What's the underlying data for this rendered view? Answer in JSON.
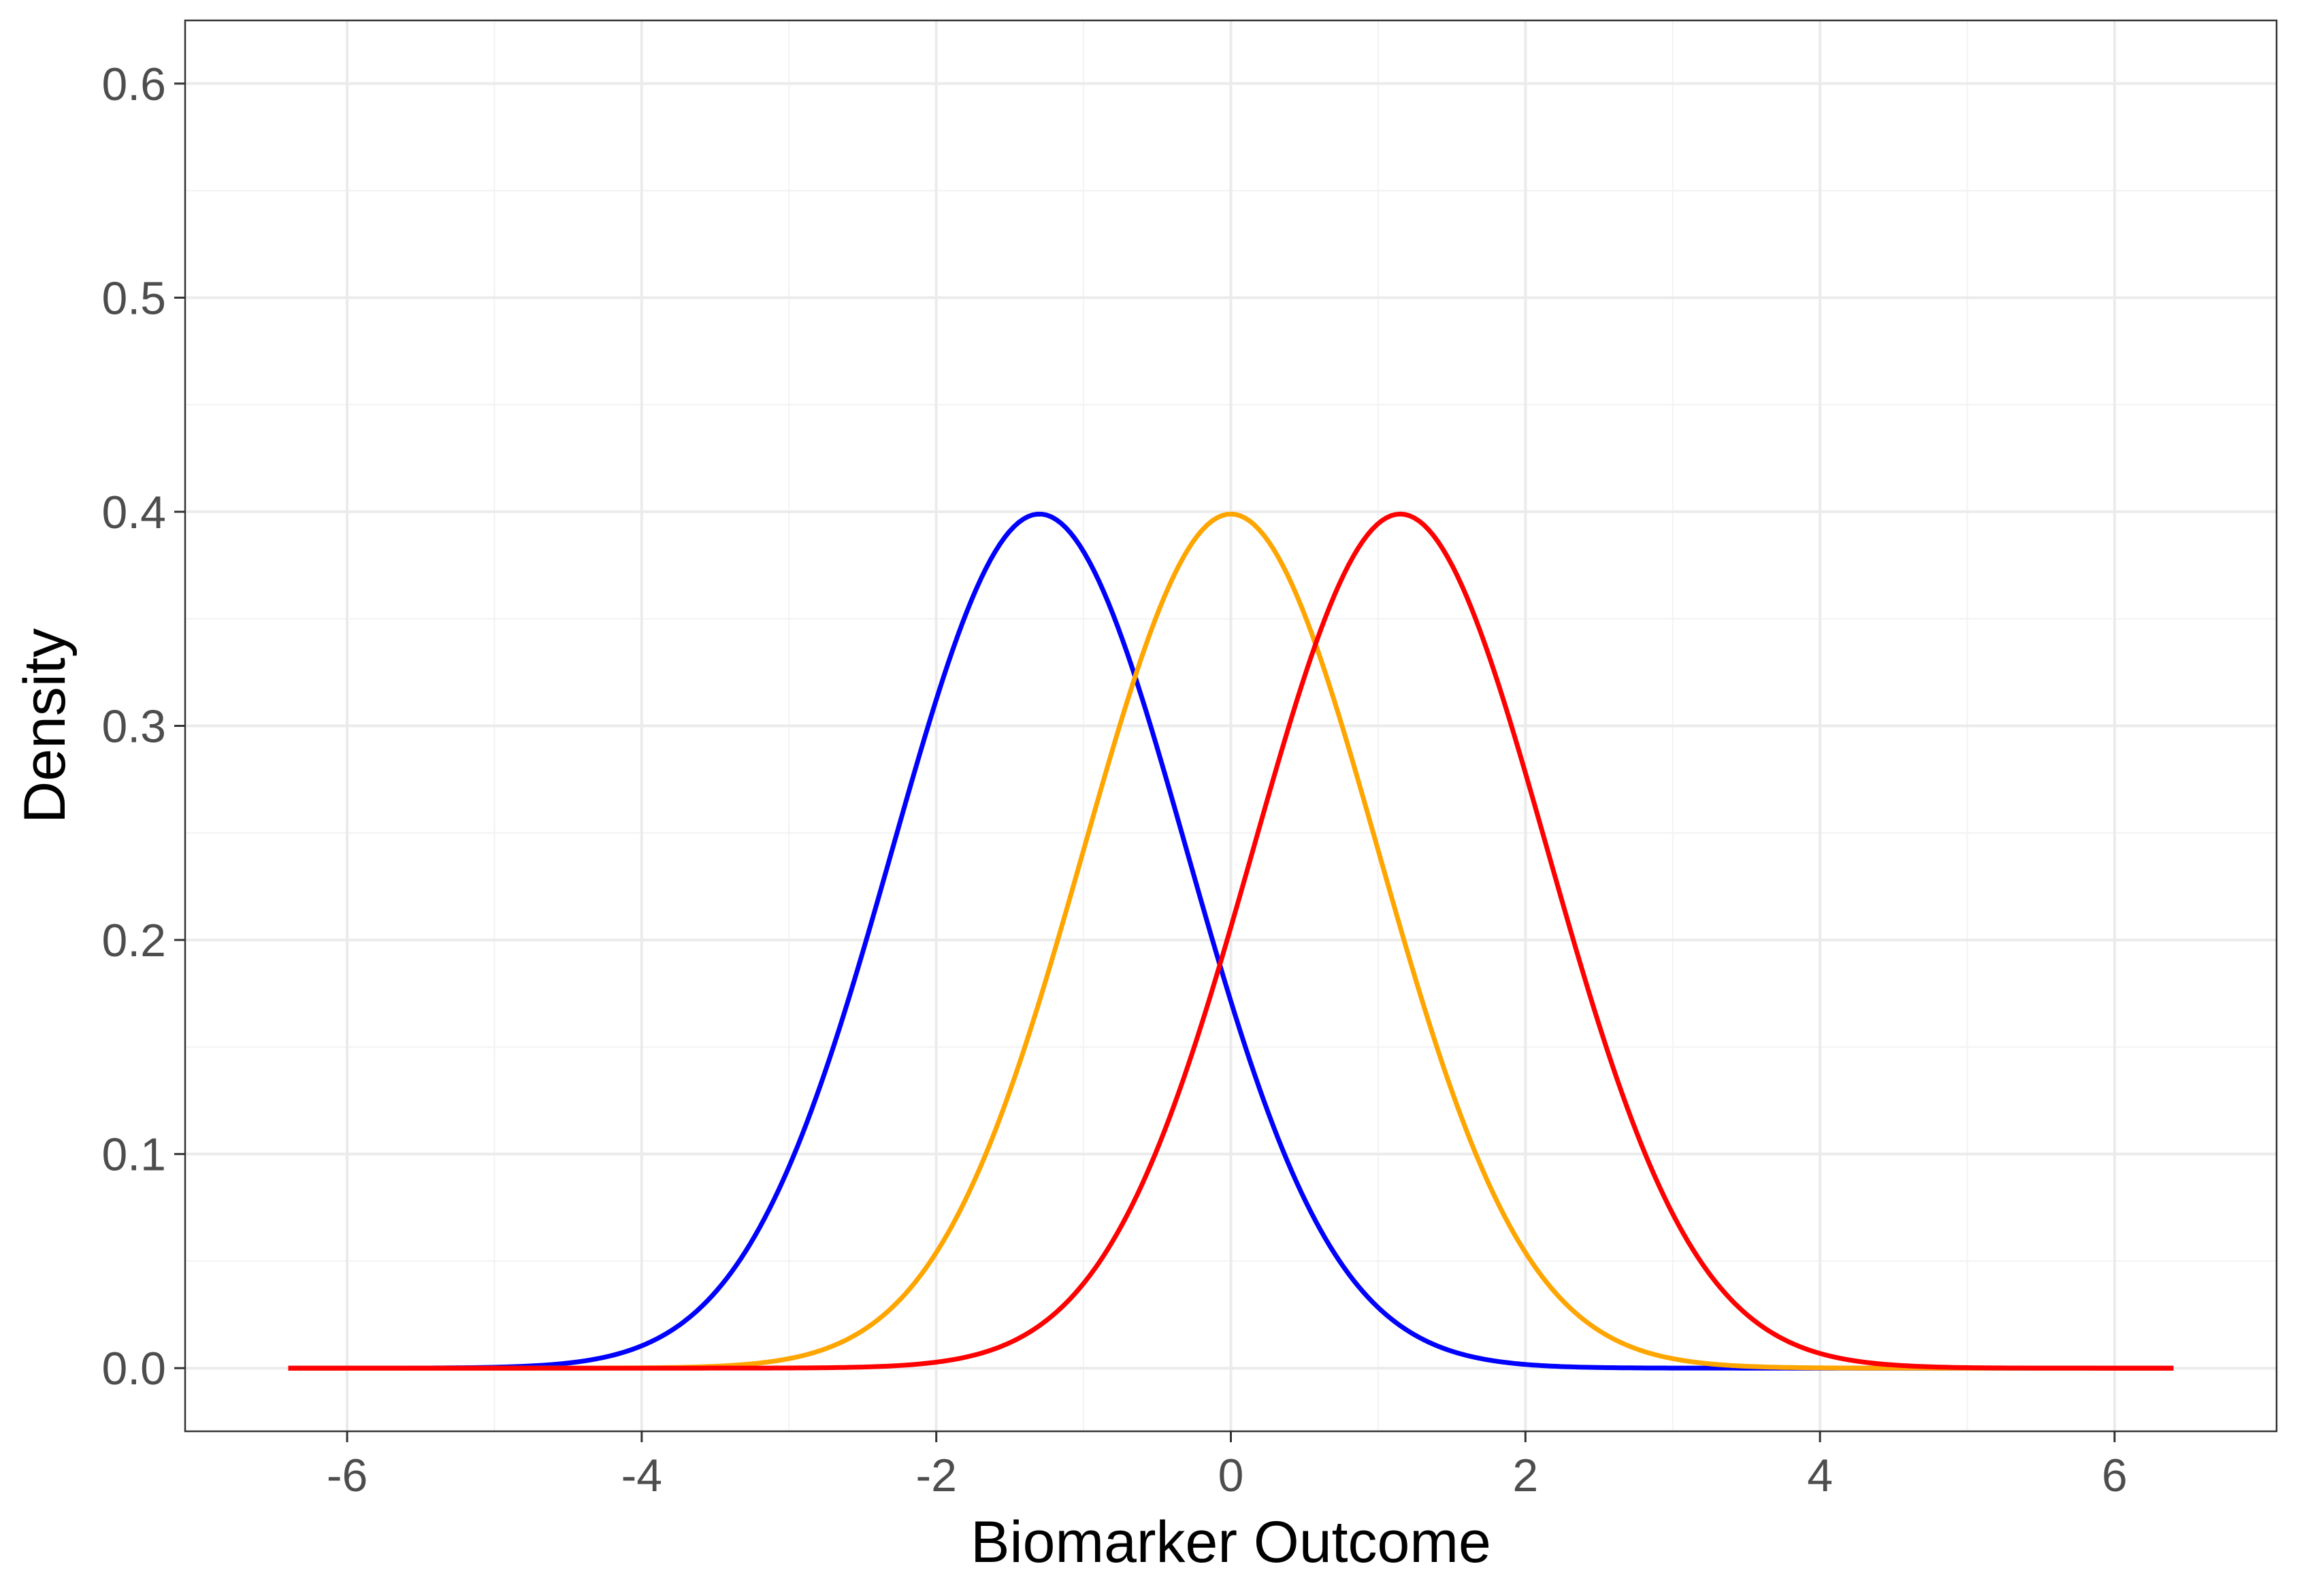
{
  "chart_data": {
    "type": "line",
    "title": "",
    "xlabel": "Biomarker Outcome",
    "ylabel": "Density",
    "xlim": [
      -7.1,
      7.1
    ],
    "ylim": [
      -0.0295,
      0.6295
    ],
    "x_ticks": [
      -6,
      -4,
      -2,
      0,
      2,
      4,
      6
    ],
    "x_tick_labels": [
      "-6",
      "-4",
      "-2",
      "0",
      "2",
      "4",
      "6"
    ],
    "y_ticks": [
      0.0,
      0.1,
      0.2,
      0.3,
      0.4,
      0.5,
      0.6
    ],
    "y_tick_labels": [
      "0.0",
      "0.1",
      "0.2",
      "0.3",
      "0.4",
      "0.5",
      "0.6"
    ],
    "x_range": [
      -6.4,
      6.4
    ],
    "grid": true,
    "legend": "none",
    "series": [
      {
        "distribution": "normal",
        "mean": -1.3,
        "sd": 1.0,
        "color": "#0000FF"
      },
      {
        "distribution": "normal",
        "mean": 0.0,
        "sd": 1.0,
        "color": "#FFA500"
      },
      {
        "distribution": "normal",
        "mean": 1.15,
        "sd": 1.0,
        "color": "#FF0000"
      }
    ]
  }
}
